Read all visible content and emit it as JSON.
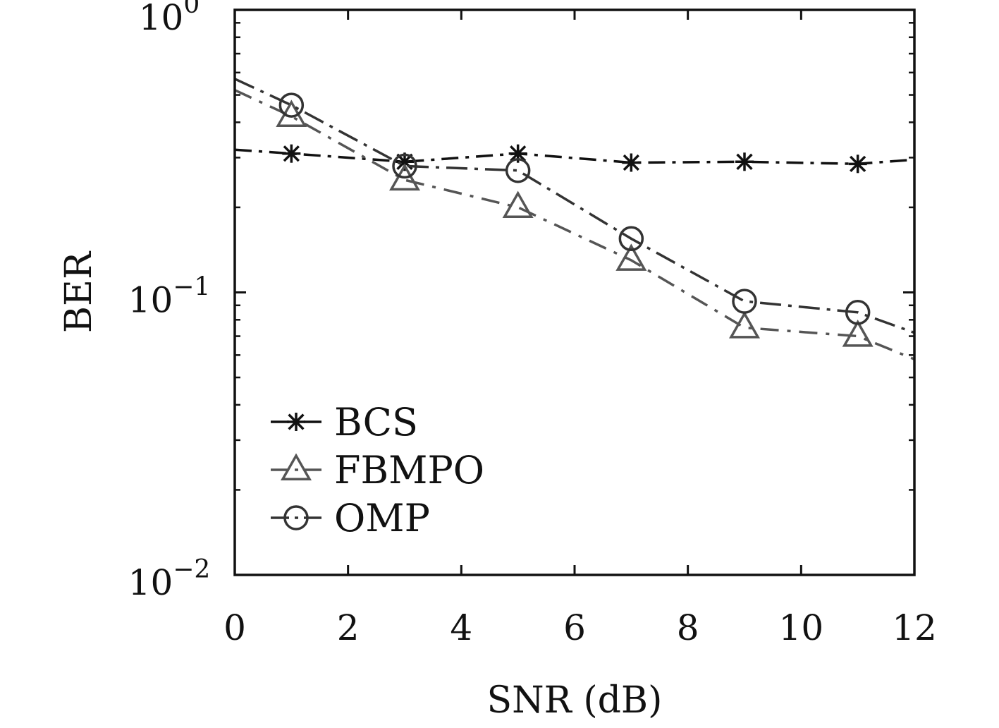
{
  "chart_data": {
    "type": "line",
    "title": "",
    "xlabel": "SNR (dB)",
    "ylabel": "BER",
    "xlim": [
      0,
      12
    ],
    "ylim": [
      0.01,
      1
    ],
    "yscale": "log",
    "grid": false,
    "legend_position": "bottom-left",
    "x_ticks": [
      0,
      2,
      4,
      6,
      8,
      10,
      12
    ],
    "y_ticks": [
      {
        "value": 1,
        "base": "10",
        "exp": "0"
      },
      {
        "value": 0.1,
        "base": "10",
        "exp": "−1"
      },
      {
        "value": 0.01,
        "base": "10",
        "exp": "−2"
      }
    ],
    "series": [
      {
        "name": "BCS",
        "marker": "asterisk",
        "color": "#111111",
        "dash": "24,10,5,10",
        "line_x": [
          0,
          1,
          3,
          5,
          7,
          9,
          11,
          12
        ],
        "line_y": [
          0.32,
          0.31,
          0.29,
          0.31,
          0.288,
          0.29,
          0.285,
          0.295
        ],
        "x": [
          1,
          3,
          5,
          7,
          9,
          11
        ],
        "y": [
          0.31,
          0.29,
          0.31,
          0.288,
          0.29,
          0.285
        ]
      },
      {
        "name": "FBMPO",
        "marker": "triangle",
        "color": "#555555",
        "dash": "26,12,5,12",
        "line_x": [
          0,
          1,
          3,
          5,
          7,
          9,
          11,
          12
        ],
        "line_y": [
          0.52,
          0.42,
          0.25,
          0.2,
          0.13,
          0.075,
          0.07,
          0.058
        ],
        "x": [
          1,
          3,
          5,
          7,
          9,
          11
        ],
        "y": [
          0.42,
          0.25,
          0.2,
          0.13,
          0.075,
          0.07
        ]
      },
      {
        "name": "OMP",
        "marker": "circle",
        "color": "#333333",
        "dash": "30,10,5,10",
        "line_x": [
          0,
          1,
          3,
          5,
          7,
          9,
          11,
          12
        ],
        "line_y": [
          0.57,
          0.46,
          0.28,
          0.27,
          0.155,
          0.093,
          0.085,
          0.072
        ],
        "x": [
          1,
          3,
          5,
          7,
          9,
          11
        ],
        "y": [
          0.46,
          0.28,
          0.27,
          0.155,
          0.093,
          0.085
        ]
      }
    ]
  }
}
